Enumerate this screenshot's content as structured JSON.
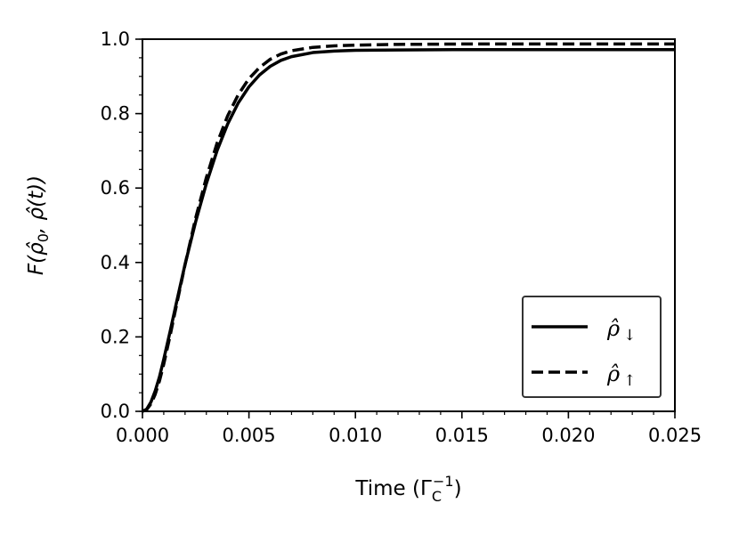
{
  "chart_data": {
    "type": "line",
    "xlabel": "Time (Γ",
    "xlabel_sub": "C",
    "xlabel_sup": "−1",
    "xlabel_close": ")",
    "ylabel": "F(ρ̂",
    "ylabel_sub": "0",
    "ylabel_tail": ", ρ̂(t))",
    "xlim": [
      0,
      0.025
    ],
    "ylim": [
      0,
      1.0
    ],
    "xticks": [
      0.0,
      0.005,
      0.01,
      0.015,
      0.02,
      0.025
    ],
    "xtick_labels": [
      "0.000",
      "0.005",
      "0.010",
      "0.015",
      "0.020",
      "0.025"
    ],
    "yticks": [
      0.0,
      0.2,
      0.4,
      0.6,
      0.8,
      1.0
    ],
    "ytick_labels": [
      "0.0",
      "0.2",
      "0.4",
      "0.6",
      "0.8",
      "1.0"
    ],
    "grid": false,
    "legend_placement": "lower-right",
    "series": [
      {
        "name": "ρ̂ ↓",
        "name_base": "ρ̂",
        "name_arrow": "↓",
        "style": "solid",
        "color": "#000000",
        "x": [
          0,
          0.0002,
          0.0004,
          0.0006,
          0.0008,
          0.001,
          0.0013,
          0.0016,
          0.002,
          0.0025,
          0.003,
          0.0035,
          0.004,
          0.0045,
          0.005,
          0.0055,
          0.006,
          0.0065,
          0.007,
          0.008,
          0.009,
          0.01,
          0.012,
          0.015,
          0.02,
          0.025
        ],
        "y": [
          0,
          0.006,
          0.025,
          0.055,
          0.093,
          0.14,
          0.215,
          0.293,
          0.395,
          0.51,
          0.612,
          0.7,
          0.772,
          0.829,
          0.872,
          0.904,
          0.927,
          0.943,
          0.953,
          0.964,
          0.968,
          0.97,
          0.971,
          0.972,
          0.972,
          0.972
        ]
      },
      {
        "name": "ρ̂ ↑",
        "name_base": "ρ̂",
        "name_arrow": "↑",
        "style": "dashed",
        "color": "#000000",
        "x": [
          0,
          0.0002,
          0.0004,
          0.0006,
          0.0008,
          0.001,
          0.0013,
          0.0016,
          0.002,
          0.0025,
          0.003,
          0.0035,
          0.004,
          0.0045,
          0.005,
          0.0055,
          0.006,
          0.0065,
          0.007,
          0.008,
          0.009,
          0.01,
          0.012,
          0.015,
          0.02,
          0.025
        ],
        "y": [
          0,
          0.005,
          0.02,
          0.046,
          0.082,
          0.127,
          0.204,
          0.286,
          0.394,
          0.52,
          0.628,
          0.72,
          0.794,
          0.851,
          0.894,
          0.924,
          0.946,
          0.96,
          0.969,
          0.978,
          0.982,
          0.984,
          0.986,
          0.987,
          0.987,
          0.987
        ]
      }
    ]
  }
}
